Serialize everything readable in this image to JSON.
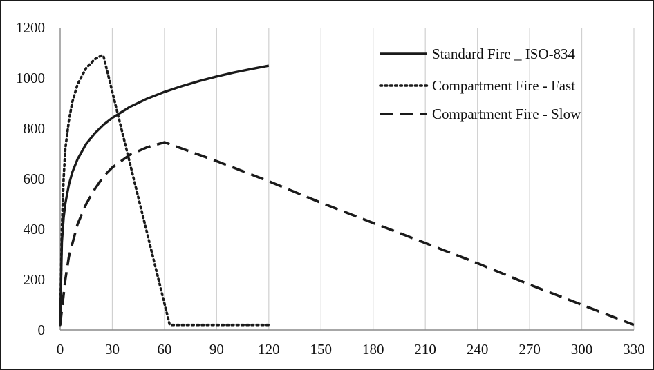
{
  "chart_data": {
    "type": "line",
    "title": "",
    "xlabel": "",
    "ylabel": "",
    "xlim": [
      0,
      330
    ],
    "ylim": [
      0,
      1200
    ],
    "xticks": [
      0,
      30,
      60,
      90,
      120,
      150,
      180,
      210,
      240,
      270,
      300,
      330
    ],
    "yticks": [
      0,
      200,
      400,
      600,
      800,
      1000,
      1200
    ],
    "xtick_labels": [
      "0",
      "30",
      "60",
      "90",
      "120",
      "150",
      "180",
      "210",
      "240",
      "270",
      "300",
      "330"
    ],
    "ytick_labels": [
      "0",
      "200",
      "400",
      "600",
      "800",
      "1000",
      "1200"
    ],
    "grid": "vertical",
    "legend_position": "top-right",
    "colors": {
      "series": "#1a1a1a",
      "grid": "#d0d0d0",
      "frame": "#1a1a1a"
    },
    "series": [
      {
        "name": "Standard Fire _ ISO-834",
        "style": "solid",
        "x": [
          0,
          1,
          2,
          3,
          5,
          7,
          10,
          15,
          20,
          25,
          30,
          40,
          50,
          60,
          70,
          80,
          90,
          100,
          110,
          120
        ],
        "y": [
          20,
          349,
          445,
          502,
          576,
          626,
          678,
          739,
          781,
          815,
          842,
          885,
          918,
          945,
          968,
          988,
          1006,
          1022,
          1036,
          1049
        ]
      },
      {
        "name": "Compartment Fire - Fast",
        "style": "dotted",
        "x": [
          0,
          1,
          2,
          3,
          5,
          7,
          10,
          15,
          20,
          24,
          25,
          63,
          120
        ],
        "y": [
          20,
          400,
          600,
          720,
          830,
          905,
          975,
          1040,
          1075,
          1090,
          1085,
          20,
          20
        ]
      },
      {
        "name": "Compartment Fire - Slow",
        "style": "dashed",
        "x": [
          0,
          3,
          5,
          10,
          15,
          20,
          25,
          30,
          40,
          50,
          60,
          90,
          120,
          150,
          180,
          210,
          240,
          270,
          300,
          330
        ],
        "y": [
          20,
          200,
          290,
          420,
          500,
          560,
          610,
          645,
          695,
          725,
          745,
          670,
          590,
          505,
          425,
          345,
          265,
          180,
          100,
          20
        ]
      }
    ]
  }
}
